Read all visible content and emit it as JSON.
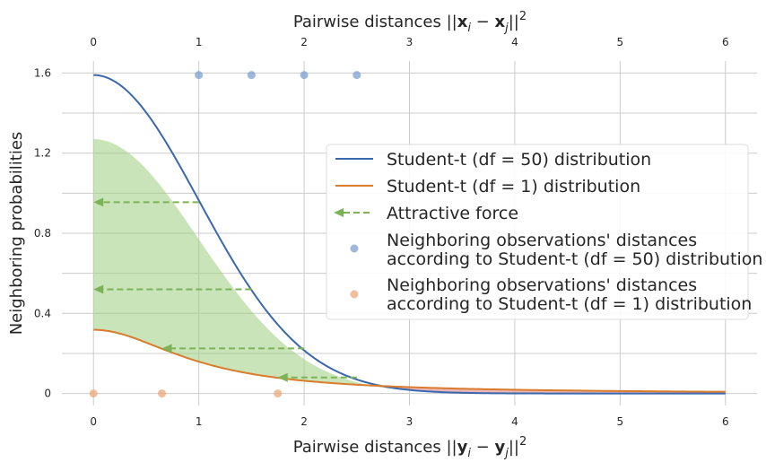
{
  "chart_data": {
    "type": "line",
    "xlabel_bottom": "Pairwise distances ||yi − yj||²",
    "xlabel_top": "Pairwise distances ||xi − xj||²",
    "ylabel": "Neighboring probabilities",
    "xlim": [
      -0.3,
      6.3
    ],
    "ylim": [
      -0.06,
      1.66
    ],
    "xticks": [
      0,
      1,
      2,
      3,
      4,
      5,
      6
    ],
    "yticks": [
      0,
      0.4,
      0.8,
      1.2,
      1.6
    ],
    "ytick_labels": [
      "0",
      "0.4",
      "0.8",
      "1.2",
      "1.6"
    ],
    "grid": true,
    "legend_position": "center-right",
    "colors": {
      "df50": "#3a68ad",
      "df1": "#d97c2d",
      "force": "#7db358",
      "fill_green": "#9fcd7f",
      "fill_red": "#de8686",
      "dots_blue": "#7e9fd1",
      "dots_orange": "#eaa87a",
      "grid": "#cccccc"
    },
    "series": [
      {
        "name": "Student-t (df = 50) distribution",
        "key": "df50",
        "formula": "1.59*exp(-x^2/2)",
        "x_range": [
          0,
          6
        ]
      },
      {
        "name": "Student-t (df = 1) distribution",
        "key": "df1",
        "formula": "0.318/(1+x^2)",
        "x_range": [
          0,
          6
        ]
      }
    ],
    "fill_regions": [
      {
        "color_key": "fill_green",
        "x_range": [
          0,
          2.83
        ],
        "upper": "1.27*exp(-x^2/2)",
        "lower": "df1"
      },
      {
        "color_key": "fill_red",
        "x_range": [
          2.83,
          6
        ],
        "upper": "df1",
        "lower": "df50"
      }
    ],
    "attractive_force": {
      "name": "Attractive force",
      "arrows": [
        {
          "y": 0.955,
          "from_x": 1.0,
          "to_x": 0.0
        },
        {
          "y": 0.52,
          "from_x": 1.5,
          "to_x": 0.0
        },
        {
          "y": 0.225,
          "from_x": 2.0,
          "to_x": 0.65
        },
        {
          "y": 0.08,
          "from_x": 2.5,
          "to_x": 1.75
        }
      ]
    },
    "scatter": [
      {
        "name": "Neighboring observations' distances according to Student-t (df = 50) distribution",
        "key": "dots_blue",
        "points": [
          [
            1.0,
            1.59
          ],
          [
            1.5,
            1.59
          ],
          [
            2.0,
            1.59
          ],
          [
            2.5,
            1.59
          ]
        ]
      },
      {
        "name": "Neighboring observations' distances according to Student-t (df = 1) distribution",
        "key": "dots_orange",
        "points": [
          [
            0.0,
            0.0
          ],
          [
            0.65,
            0.0
          ],
          [
            1.75,
            0.0
          ]
        ]
      }
    ],
    "legend": {
      "line1": "Student-t (df = 50) distribution",
      "line2": "Student-t (df = 1) distribution",
      "force": "Attractive force",
      "dots50_a": "Neighboring observations' distances",
      "dots50_b": "according to Student-t (df = 50) distribution",
      "dots1_a": "Neighboring observations' distances",
      "dots1_b": "according to Student-t (df = 1) distribution"
    }
  }
}
